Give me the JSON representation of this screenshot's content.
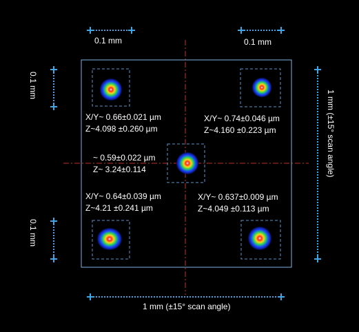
{
  "scale_top_left": "0.1 mm",
  "scale_top_right": "0.1 mm",
  "scale_left_top": "0.1 mm",
  "scale_left_bottom": "0.1 mm",
  "scale_bottom": "1 mm (±15° scan angle)",
  "scale_right": "1 mm (±15° scan angle)",
  "spots": {
    "top_left": {
      "line1": "X/Y~ 0.66±0.021  µm",
      "line2": "Z~4.098 ±0.260 µm"
    },
    "top_right": {
      "line1": "X/Y~ 0.74±0.046  µm",
      "line2": "Z~4.160 ±0.223 µm"
    },
    "center": {
      "line1": "~ 0.59±0.022  µm",
      "line2": "Z~ 3.24±0.114"
    },
    "bottom_left": {
      "line1": "X/Y~ 0.64±0.039  µm",
      "line2": "Z~4.21 ±0.241 µm"
    },
    "bottom_right": {
      "line1": "X/Y~ 0.637±0.009  µm",
      "line2": "Z~4.049 ±0.113 µm"
    }
  },
  "colors": {
    "background": "#000000",
    "frame": "#7fb5e6",
    "dimension_line": "#3fa6e8",
    "crosshair": "#c0322b",
    "text": "#ffffff"
  }
}
